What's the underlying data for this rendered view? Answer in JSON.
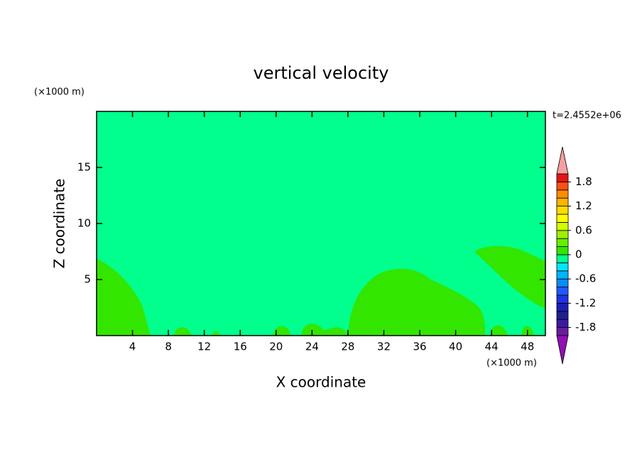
{
  "chart_data": {
    "type": "contour",
    "title": "vertical velocity",
    "x_label": "X coordinate",
    "y_label": "Z coordinate",
    "x_unit": "(×1000 m)",
    "y_unit": "(×1000 m)",
    "time_label": "t=2.4552e+06",
    "xlim": [
      0,
      50
    ],
    "ylim": [
      0,
      20
    ],
    "xticks": [
      4,
      8,
      12,
      16,
      20,
      24,
      28,
      32,
      36,
      40,
      44,
      48
    ],
    "yticks": [
      5,
      10,
      15
    ],
    "levels": [
      -2,
      -1.8,
      -1.6,
      -1.4,
      -1.2,
      -1,
      -0.8,
      -0.6,
      -0.4,
      -0.2,
      0,
      0.2,
      0.4,
      0.6,
      0.8,
      1,
      1.2,
      1.4,
      1.6,
      1.8,
      2
    ],
    "colors": [
      "#6a1aa0",
      "#3c1aa0",
      "#1e1e96",
      "#1e1eb4",
      "#1e32e6",
      "#1e5aff",
      "#0a8cff",
      "#00b4ff",
      "#00e6ff",
      "#00ff8c",
      "#32e600",
      "#64f000",
      "#a0f000",
      "#d2ff00",
      "#ffff00",
      "#ffdc00",
      "#ffb400",
      "#ff8c00",
      "#ff5014",
      "#e61414"
    ],
    "under_color": "#9010b0",
    "over_color": "#f4a0a0",
    "colorbar_ticks": [
      -1.8,
      -1.2,
      -0.6,
      0,
      0.6,
      1.2,
      1.8
    ]
  }
}
